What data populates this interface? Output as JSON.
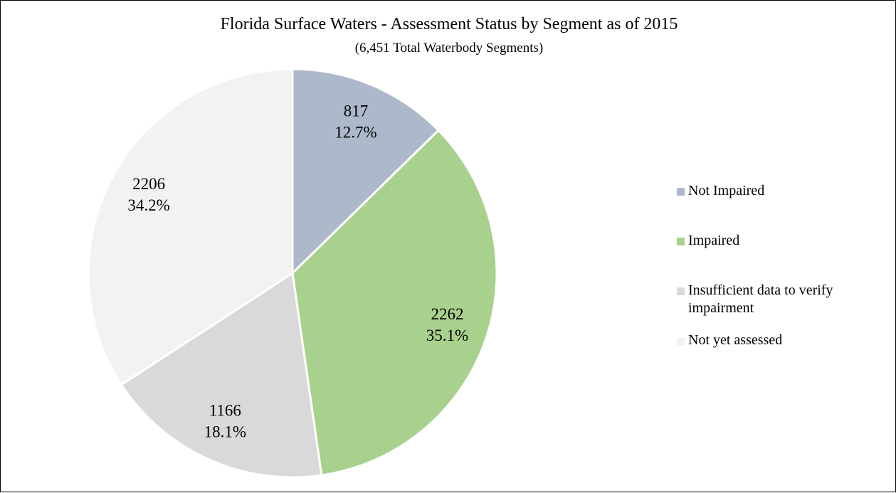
{
  "chart_data": {
    "type": "pie",
    "title": "Florida Surface Waters - Assessment Status by Segment as of 2015",
    "subtitle": "(6,451 Total Waterbody Segments)",
    "categories": [
      "Not Impaired",
      "Impaired",
      "Insufficient data to verify impairment",
      "Not yet assessed"
    ],
    "values": [
      817,
      2262,
      1166,
      2206
    ],
    "percent_values": [
      12.7,
      35.1,
      18.1,
      34.2
    ],
    "percent_labels": [
      "12.7%",
      "35.1%",
      "18.1%",
      "34.2%"
    ],
    "colors": [
      "#adb9ca",
      "#a9d18e",
      "#d9d9d9",
      "#f2f2f2"
    ],
    "legend": "right"
  }
}
